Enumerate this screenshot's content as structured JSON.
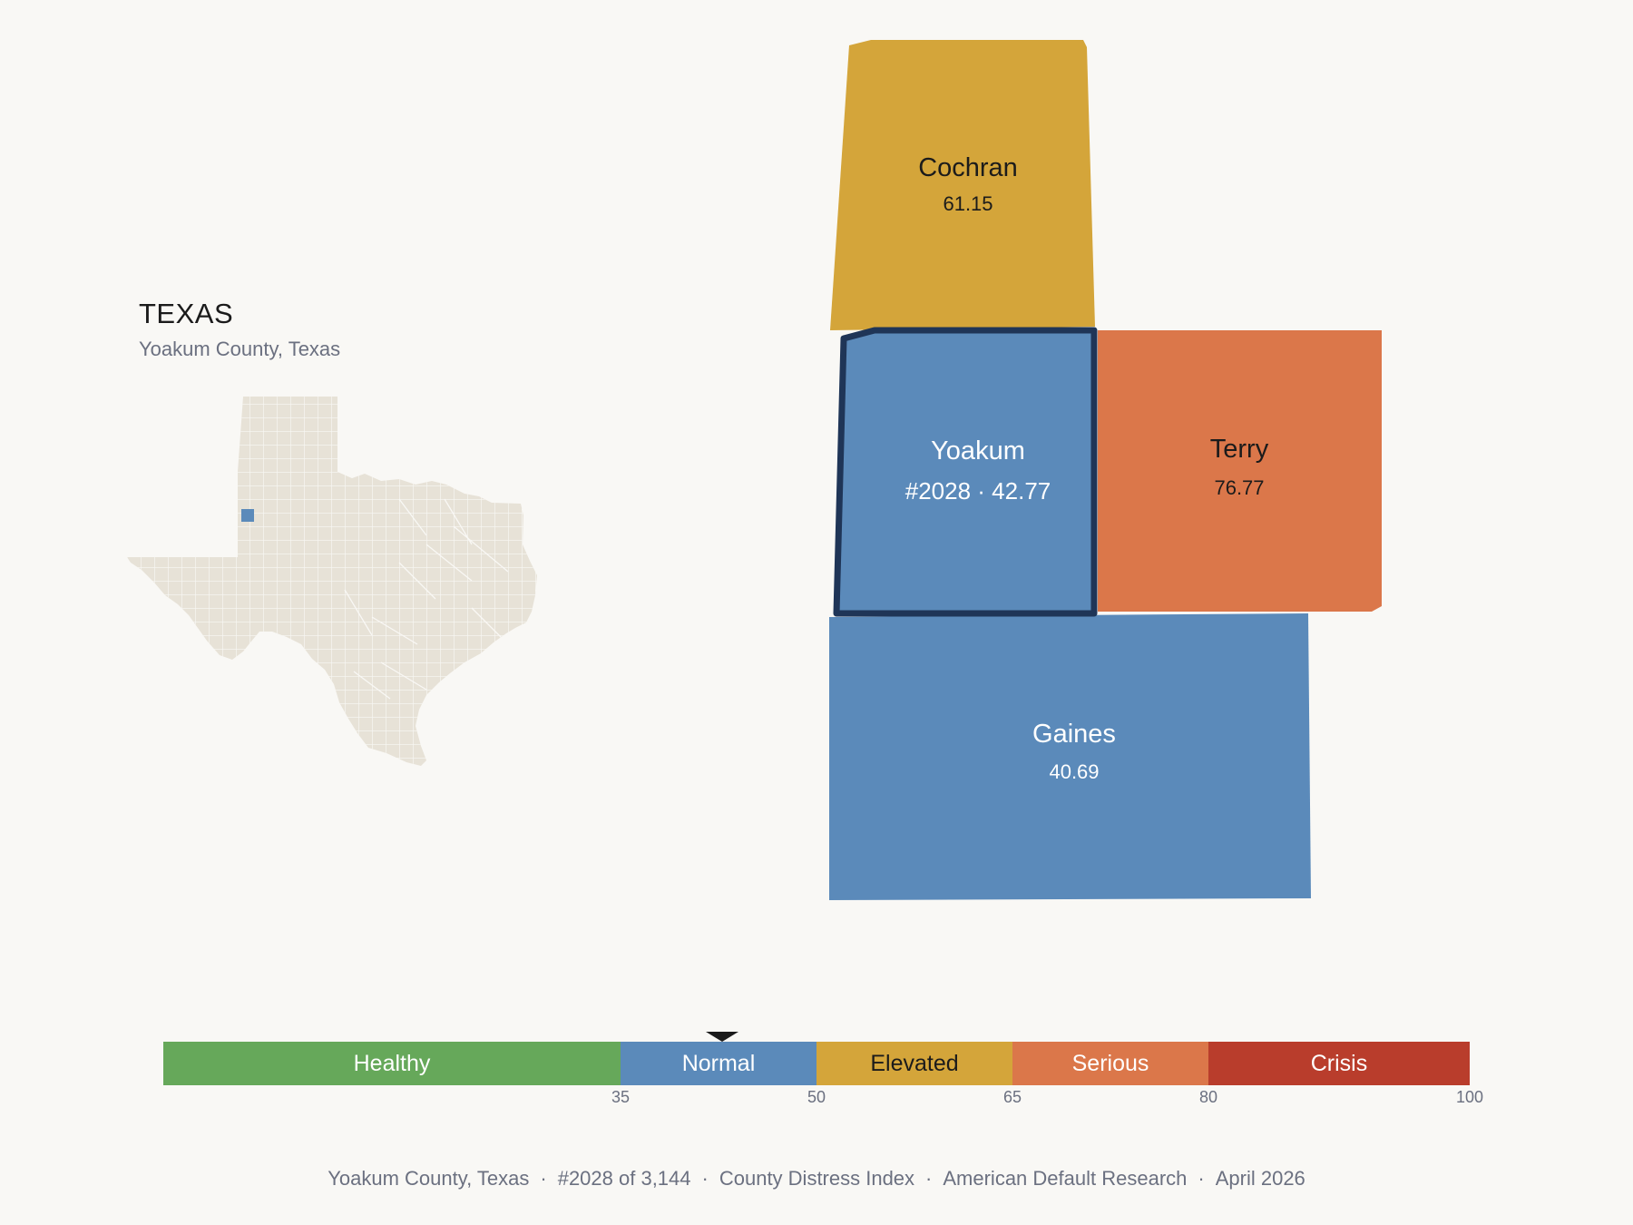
{
  "state": {
    "title": "TEXAS",
    "subtitle": "Yoakum County, Texas"
  },
  "colors": {
    "healthy": "#66a85a",
    "normal": "#5b8aba",
    "elevated": "#d4a53a",
    "serious": "#db774a",
    "crisis": "#b93d2c",
    "outline": "#1f3557",
    "state_fill": "#e7e2d7"
  },
  "counties": [
    {
      "name": "Cochran",
      "value": "61.15",
      "category": "elevated"
    },
    {
      "name": "Yoakum",
      "value": "#2028 · 42.77",
      "category": "normal",
      "selected": true
    },
    {
      "name": "Terry",
      "value": "76.77",
      "category": "serious"
    },
    {
      "name": "Gaines",
      "value": "40.69",
      "category": "normal"
    }
  ],
  "scale": {
    "segments": [
      {
        "label": "Healthy",
        "min": 0,
        "max": 35
      },
      {
        "label": "Normal",
        "min": 35,
        "max": 50
      },
      {
        "label": "Elevated",
        "min": 50,
        "max": 65
      },
      {
        "label": "Serious",
        "min": 65,
        "max": 80
      },
      {
        "label": "Crisis",
        "min": 80,
        "max": 100
      }
    ],
    "ticks": [
      "35",
      "50",
      "65",
      "80",
      "100"
    ],
    "marker_value": 42.77
  },
  "footer": {
    "county": "Yoakum County, Texas",
    "rank": "#2028 of 3,144",
    "index": "County Distress Index",
    "org": "American Default Research",
    "date": "April 2026"
  }
}
